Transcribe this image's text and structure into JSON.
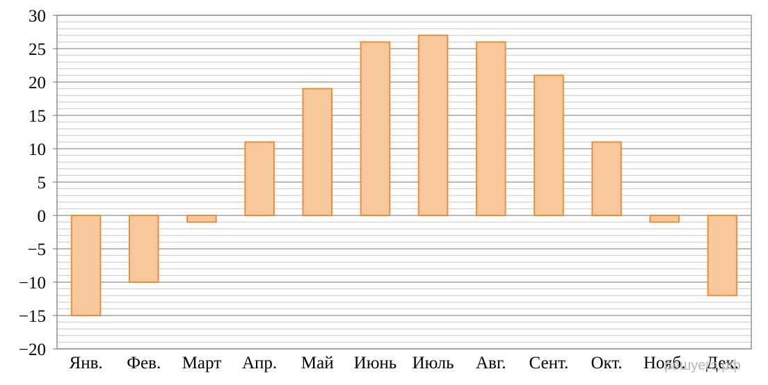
{
  "chart_data": {
    "type": "bar",
    "categories": [
      "Янв.",
      "Фев.",
      "Март",
      "Апр.",
      "Май",
      "Июнь",
      "Июль",
      "Авг.",
      "Сент.",
      "Окт.",
      "Нояб.",
      "Дек."
    ],
    "values": [
      -15,
      -10,
      -1,
      11,
      19,
      26,
      27,
      26,
      21,
      11,
      -1,
      -12
    ],
    "ylim": [
      -20,
      30
    ],
    "yticks": [
      -20,
      -15,
      -10,
      -5,
      0,
      5,
      10,
      15,
      20,
      25,
      30
    ],
    "ytick_labels": [
      "−20",
      "−15",
      "−10",
      "−5",
      "0",
      "5",
      "10",
      "15",
      "20",
      "25",
      "30"
    ],
    "minor_gridline_step": 1,
    "grid": true,
    "legend": "none",
    "title": "",
    "xlabel": "",
    "ylabel": "",
    "colors": {
      "bar_fill": "#f7c89c",
      "bar_stroke": "#ef8c3a",
      "major_grid": "#8f8f8f",
      "minor_grid": "#c8c8c8",
      "frame": "#8f8f8f"
    }
  },
  "watermark": "решуегэ.рф"
}
